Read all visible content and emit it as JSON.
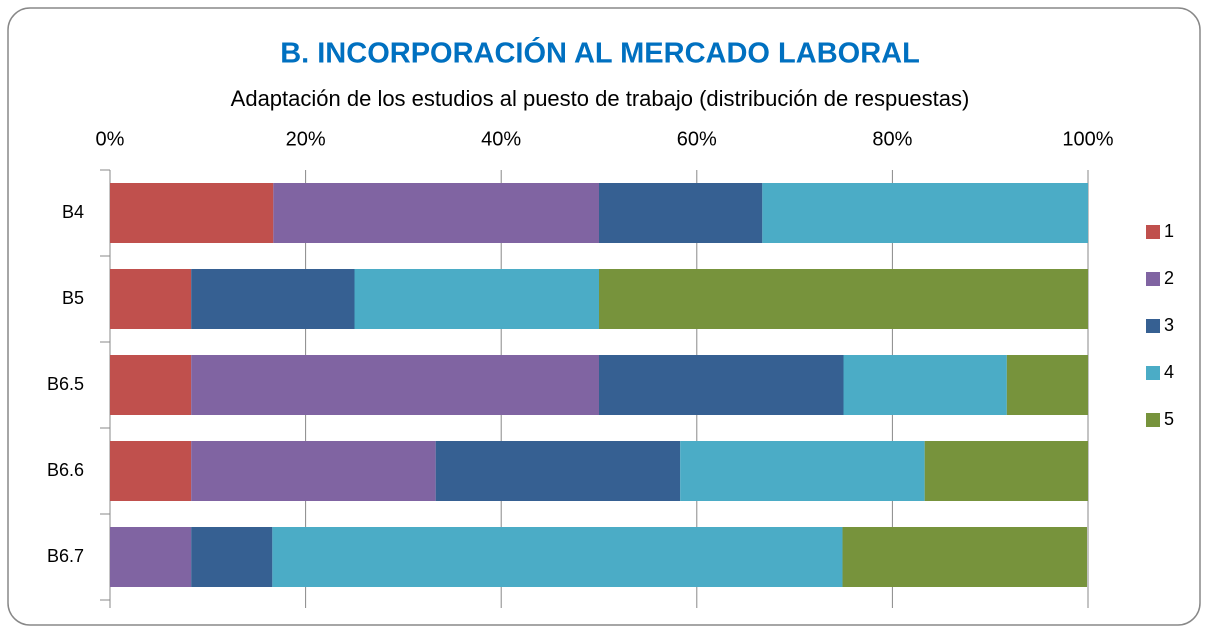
{
  "chart_data": {
    "type": "stacked_barh",
    "title": "B. INCORPORACIÓN AL MERCADO LABORAL",
    "subtitle": "Adaptación de los estudios al puesto de trabajo (distribución de respuestas)",
    "categories": [
      "B4",
      "B5",
      "B6.5",
      "B6.6",
      "B6.7"
    ],
    "series": [
      {
        "name": "1",
        "color": "#c0504d",
        "values": [
          16.7,
          8.3,
          8.3,
          8.3,
          0
        ]
      },
      {
        "name": "2",
        "color": "#8064a2",
        "values": [
          33.3,
          0,
          41.7,
          25,
          8.3
        ]
      },
      {
        "name": "3",
        "color": "#366092",
        "values": [
          16.7,
          16.7,
          25,
          25,
          8.3
        ]
      },
      {
        "name": "4",
        "color": "#4bacc6",
        "values": [
          33.3,
          25,
          16.7,
          25,
          58.3
        ]
      },
      {
        "name": "5",
        "color": "#77933c",
        "values": [
          0,
          50,
          8.3,
          16.7,
          25
        ]
      }
    ],
    "xlim": [
      0,
      100
    ],
    "xticks": [
      {
        "value": 0,
        "label": "0%"
      },
      {
        "value": 20,
        "label": "20%"
      },
      {
        "value": 40,
        "label": "40%"
      },
      {
        "value": 60,
        "label": "60%"
      },
      {
        "value": 80,
        "label": "80%"
      },
      {
        "value": 100,
        "label": "100%"
      }
    ],
    "grid": true,
    "legend": "right"
  }
}
